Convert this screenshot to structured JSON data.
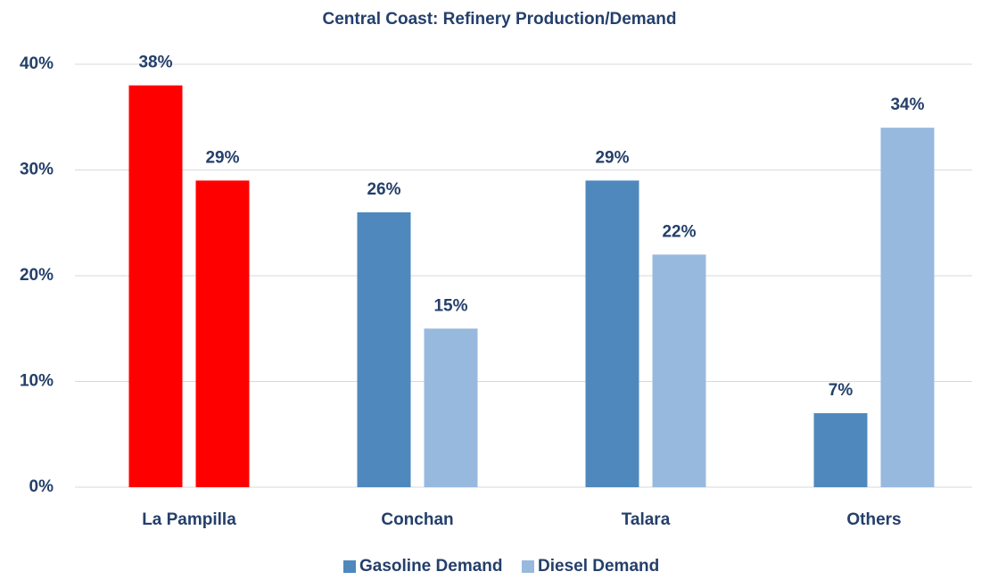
{
  "chart_data": {
    "type": "bar",
    "title": "Central Coast: Refinery Production/Demand",
    "categories": [
      "La Pampilla",
      "Conchan",
      "Talara",
      "Others"
    ],
    "series": [
      {
        "name": "Gasoline Demand",
        "color": "#4f88bd",
        "colors": [
          "#ff0000",
          "#4f88bd",
          "#4f88bd",
          "#4f88bd"
        ],
        "values": [
          38,
          26,
          29,
          7
        ],
        "value_labels": [
          "38%",
          "26%",
          "29%",
          "7%"
        ]
      },
      {
        "name": "Diesel Demand",
        "color": "#98b9de",
        "colors": [
          "#ff0000",
          "#98b9de",
          "#98b9de",
          "#98b9de"
        ],
        "values": [
          29,
          15,
          22,
          34
        ],
        "value_labels": [
          "29%",
          "15%",
          "22%",
          "34%"
        ]
      }
    ],
    "ylim": [
      0,
      40
    ],
    "yticks": [
      {
        "value": 0,
        "label": "0%"
      },
      {
        "value": 10,
        "label": "10%"
      },
      {
        "value": 20,
        "label": "20%"
      },
      {
        "value": 30,
        "label": "30%"
      },
      {
        "value": 40,
        "label": "40%"
      }
    ],
    "grid": true,
    "legend": "bottom"
  }
}
